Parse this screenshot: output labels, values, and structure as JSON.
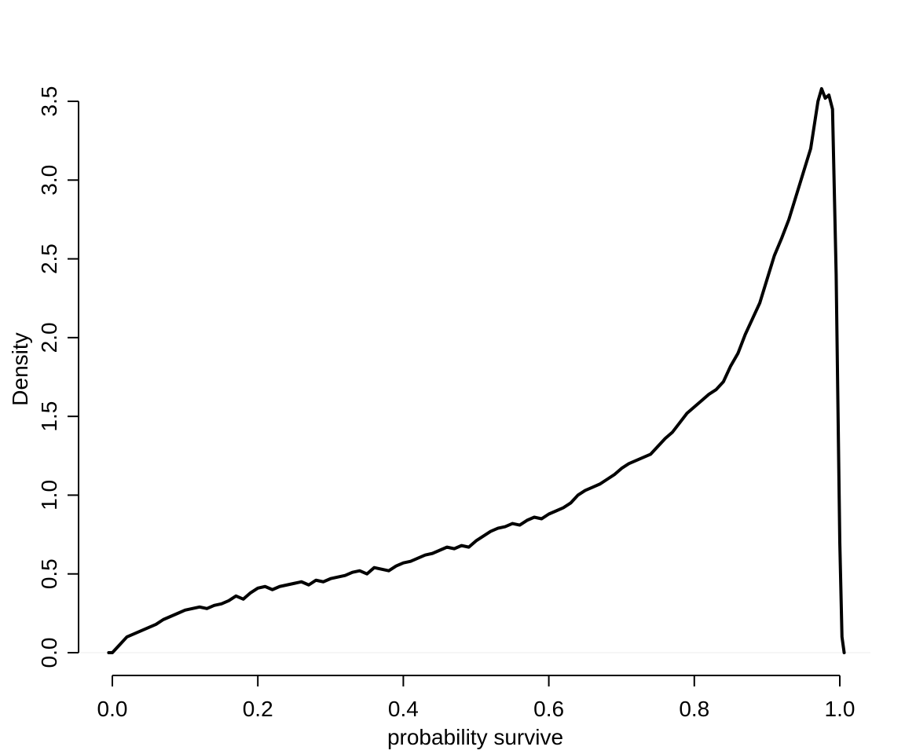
{
  "chart_data": {
    "type": "line",
    "title": "",
    "xlabel": "probability survive",
    "ylabel": "Density",
    "xlim": [
      0.0,
      1.0
    ],
    "ylim": [
      0.0,
      3.5
    ],
    "x_ticks": [
      {
        "value": 0.0,
        "label": "0.0"
      },
      {
        "value": 0.2,
        "label": "0.2"
      },
      {
        "value": 0.4,
        "label": "0.4"
      },
      {
        "value": 0.6,
        "label": "0.6"
      },
      {
        "value": 0.8,
        "label": "0.8"
      },
      {
        "value": 1.0,
        "label": "1.0"
      }
    ],
    "y_ticks": [
      {
        "value": 0.0,
        "label": "0.0"
      },
      {
        "value": 0.5,
        "label": "0.5"
      },
      {
        "value": 1.0,
        "label": "1.0"
      },
      {
        "value": 1.5,
        "label": "1.5"
      },
      {
        "value": 2.0,
        "label": "2.0"
      },
      {
        "value": 2.5,
        "label": "2.5"
      },
      {
        "value": 3.0,
        "label": "3.0"
      },
      {
        "value": 3.5,
        "label": "3.5"
      }
    ],
    "grid": false,
    "series": [
      {
        "color": "#000000",
        "x": [
          -0.005,
          0.0,
          0.01,
          0.02,
          0.03,
          0.04,
          0.05,
          0.06,
          0.07,
          0.08,
          0.09,
          0.1,
          0.11,
          0.12,
          0.13,
          0.14,
          0.15,
          0.16,
          0.17,
          0.18,
          0.19,
          0.2,
          0.21,
          0.22,
          0.23,
          0.24,
          0.25,
          0.26,
          0.27,
          0.28,
          0.29,
          0.3,
          0.31,
          0.32,
          0.33,
          0.34,
          0.35,
          0.36,
          0.37,
          0.38,
          0.39,
          0.4,
          0.41,
          0.42,
          0.43,
          0.44,
          0.45,
          0.46,
          0.47,
          0.48,
          0.49,
          0.5,
          0.51,
          0.52,
          0.53,
          0.54,
          0.55,
          0.56,
          0.57,
          0.58,
          0.59,
          0.6,
          0.61,
          0.62,
          0.63,
          0.64,
          0.65,
          0.66,
          0.67,
          0.68,
          0.69,
          0.7,
          0.71,
          0.72,
          0.73,
          0.74,
          0.75,
          0.76,
          0.77,
          0.78,
          0.79,
          0.8,
          0.81,
          0.82,
          0.83,
          0.84,
          0.85,
          0.86,
          0.87,
          0.88,
          0.89,
          0.9,
          0.91,
          0.92,
          0.93,
          0.94,
          0.95,
          0.96,
          0.97,
          0.975,
          0.98,
          0.985,
          0.99,
          0.995,
          1.0,
          1.003,
          1.006
        ],
        "y": [
          0.0,
          0.0,
          0.05,
          0.1,
          0.12,
          0.14,
          0.16,
          0.18,
          0.21,
          0.23,
          0.25,
          0.27,
          0.28,
          0.29,
          0.28,
          0.3,
          0.31,
          0.33,
          0.36,
          0.34,
          0.38,
          0.41,
          0.42,
          0.4,
          0.42,
          0.43,
          0.44,
          0.45,
          0.43,
          0.46,
          0.45,
          0.47,
          0.48,
          0.49,
          0.51,
          0.52,
          0.5,
          0.54,
          0.53,
          0.52,
          0.55,
          0.57,
          0.58,
          0.6,
          0.62,
          0.63,
          0.65,
          0.67,
          0.66,
          0.68,
          0.67,
          0.71,
          0.74,
          0.77,
          0.79,
          0.8,
          0.82,
          0.81,
          0.84,
          0.86,
          0.85,
          0.88,
          0.9,
          0.92,
          0.95,
          1.0,
          1.03,
          1.05,
          1.07,
          1.1,
          1.13,
          1.17,
          1.2,
          1.22,
          1.24,
          1.26,
          1.31,
          1.36,
          1.4,
          1.46,
          1.52,
          1.56,
          1.6,
          1.64,
          1.67,
          1.72,
          1.82,
          1.9,
          2.02,
          2.12,
          2.22,
          2.37,
          2.52,
          2.63,
          2.75,
          2.9,
          3.05,
          3.2,
          3.5,
          3.58,
          3.52,
          3.54,
          3.45,
          2.4,
          0.7,
          0.1,
          0.0
        ]
      }
    ]
  }
}
